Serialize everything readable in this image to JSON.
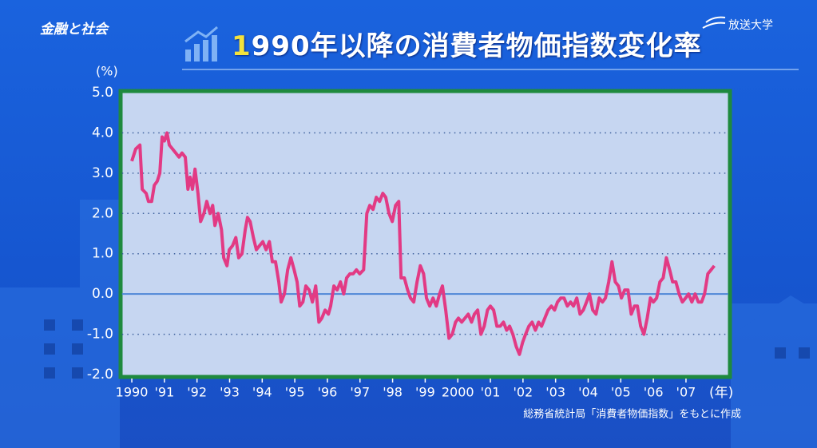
{
  "header": {
    "program": "金融と社会",
    "logo": "放送大学"
  },
  "chart_data": {
    "type": "line",
    "title": "1990年以降の消費者物価指数変化率",
    "y_label": "(%)",
    "x_label": "(年)",
    "source": "総務省統計局「消費者物価指数」をもとに作成",
    "color": "#e23a84",
    "x": [
      1990.0,
      1990.12,
      1990.25,
      1990.32,
      1990.44,
      1990.51,
      1990.61,
      1990.69,
      1990.78,
      1990.86,
      1990.93,
      1991.0,
      1991.08,
      1991.15,
      1991.25,
      1991.35,
      1991.45,
      1991.54,
      1991.64,
      1991.72,
      1991.79,
      1991.86,
      1991.94,
      1992.03,
      1992.11,
      1992.21,
      1992.3,
      1992.4,
      1992.48,
      1992.55,
      1992.65,
      1992.75,
      1992.82,
      1992.92,
      1992.99,
      1993.09,
      1993.19,
      1993.28,
      1993.38,
      1993.48,
      1993.55,
      1993.63,
      1993.73,
      1993.82,
      1993.92,
      1994.02,
      1994.12,
      1994.22,
      1994.31,
      1994.41,
      1994.51,
      1994.58,
      1994.68,
      1994.78,
      1994.88,
      1994.98,
      1995.07,
      1995.15,
      1995.25,
      1995.34,
      1995.44,
      1995.54,
      1995.64,
      1995.74,
      1995.83,
      1995.93,
      1996.03,
      1996.1,
      1996.2,
      1996.3,
      1996.4,
      1996.5,
      1996.59,
      1996.69,
      1996.79,
      1996.89,
      1996.99,
      1997.11,
      1997.21,
      1997.3,
      1997.4,
      1997.5,
      1997.6,
      1997.7,
      1997.79,
      1997.89,
      1997.99,
      1998.09,
      1998.19,
      1998.26,
      1998.36,
      1998.46,
      1998.55,
      1998.65,
      1998.75,
      1998.85,
      1998.95,
      1999.04,
      1999.14,
      1999.24,
      1999.34,
      1999.44,
      1999.53,
      1999.63,
      1999.73,
      1999.83,
      1999.93,
      2000.02,
      2000.12,
      2000.22,
      2000.32,
      2000.42,
      2000.51,
      2000.61,
      2000.71,
      2000.81,
      2000.91,
      2001.0,
      2001.1,
      2001.2,
      2001.3,
      2001.4,
      2001.5,
      2001.59,
      2001.69,
      2001.79,
      2001.89,
      2001.99,
      2002.08,
      2002.18,
      2002.28,
      2002.38,
      2002.48,
      2002.57,
      2002.67,
      2002.77,
      2002.87,
      2002.97,
      2003.06,
      2003.16,
      2003.26,
      2003.36,
      2003.46,
      2003.55,
      2003.65,
      2003.75,
      2003.85,
      2003.95,
      2004.04,
      2004.14,
      2004.24,
      2004.34,
      2004.44,
      2004.53,
      2004.63,
      2004.73,
      2004.83,
      2004.93,
      2005.02,
      2005.12,
      2005.22,
      2005.32,
      2005.42,
      2005.51,
      2005.61,
      2005.71,
      2005.81,
      2005.91,
      2006.0,
      2006.1,
      2006.2,
      2006.3,
      2006.4,
      2006.5,
      2006.59,
      2006.69,
      2006.79,
      2006.89,
      2006.99,
      2007.08,
      2007.18,
      2007.28,
      2007.38,
      2007.48,
      2007.57,
      2007.67,
      2007.77,
      2007.87
    ],
    "values": [
      3.3,
      3.6,
      3.7,
      2.6,
      2.5,
      2.3,
      2.3,
      2.7,
      2.8,
      3.0,
      3.9,
      3.8,
      4.0,
      3.7,
      3.6,
      3.5,
      3.4,
      3.5,
      3.4,
      2.6,
      2.9,
      2.6,
      3.1,
      2.5,
      1.8,
      2.0,
      2.3,
      2.0,
      2.2,
      1.7,
      2.0,
      1.6,
      0.9,
      0.7,
      1.1,
      1.2,
      1.4,
      0.9,
      1.0,
      1.6,
      1.9,
      1.8,
      1.4,
      1.1,
      1.2,
      1.3,
      1.1,
      1.3,
      0.8,
      0.8,
      0.3,
      -0.2,
      0.0,
      0.6,
      0.9,
      0.6,
      0.3,
      -0.3,
      -0.2,
      0.2,
      0.1,
      -0.2,
      0.2,
      -0.7,
      -0.6,
      -0.4,
      -0.5,
      -0.3,
      0.2,
      0.1,
      0.3,
      0.0,
      0.4,
      0.5,
      0.5,
      0.6,
      0.5,
      0.6,
      2.0,
      2.2,
      2.1,
      2.4,
      2.3,
      2.5,
      2.4,
      2.0,
      1.8,
      2.2,
      2.3,
      0.4,
      0.4,
      0.1,
      -0.1,
      -0.2,
      0.3,
      0.7,
      0.5,
      -0.1,
      -0.3,
      -0.1,
      -0.3,
      0.0,
      0.2,
      -0.4,
      -1.1,
      -1.0,
      -0.7,
      -0.6,
      -0.7,
      -0.6,
      -0.5,
      -0.7,
      -0.5,
      -0.4,
      -1.0,
      -0.8,
      -0.4,
      -0.3,
      -0.4,
      -0.8,
      -0.8,
      -0.7,
      -0.9,
      -0.8,
      -1.0,
      -1.3,
      -1.5,
      -1.2,
      -1.0,
      -0.8,
      -0.7,
      -0.9,
      -0.7,
      -0.8,
      -0.6,
      -0.4,
      -0.3,
      -0.4,
      -0.2,
      -0.1,
      -0.1,
      -0.3,
      -0.2,
      -0.3,
      -0.1,
      -0.5,
      -0.4,
      -0.2,
      0.0,
      -0.4,
      -0.5,
      -0.1,
      -0.2,
      -0.1,
      0.3,
      0.8,
      0.3,
      0.2,
      -0.1,
      0.1,
      0.1,
      -0.5,
      -0.3,
      -0.3,
      -0.8,
      -1.0,
      -0.6,
      -0.1,
      -0.2,
      -0.1,
      0.3,
      0.4,
      0.9,
      0.6,
      0.3,
      0.3,
      0.0,
      -0.2,
      -0.1,
      0.0,
      -0.2,
      0.0,
      -0.2,
      -0.2,
      0.0,
      0.5,
      0.6,
      0.7
    ],
    "xlim": [
      1989.7,
      2008.3
    ],
    "xticks": [
      1990,
      {
        "value": 1991,
        "label": "'91"
      },
      {
        "value": 1992,
        "label": "'92"
      },
      {
        "value": 1993,
        "label": "'93"
      },
      {
        "value": 1994,
        "label": "'94"
      },
      {
        "value": 1995,
        "label": "'95"
      },
      {
        "value": 1996,
        "label": "'96"
      },
      {
        "value": 1997,
        "label": "'97"
      },
      {
        "value": 1998,
        "label": "'98"
      },
      {
        "value": 1999,
        "label": "'99"
      },
      2000,
      {
        "value": 2001,
        "label": "'01"
      },
      {
        "value": 2002,
        "label": "'02"
      },
      {
        "value": 2003,
        "label": "'03"
      },
      {
        "value": 2004,
        "label": "'04"
      },
      {
        "value": 2005,
        "label": "'05"
      },
      {
        "value": 2006,
        "label": "'06"
      },
      {
        "value": 2007,
        "label": "'07"
      }
    ],
    "ylim": [
      -2,
      5
    ],
    "yticks": [
      {
        "value": -2,
        "label": "-2.0"
      },
      {
        "value": -1,
        "label": "-1.0"
      },
      {
        "value": 0,
        "label": "0.0"
      },
      {
        "value": 1,
        "label": "1.0"
      },
      {
        "value": 2,
        "label": "2.0"
      },
      {
        "value": 3,
        "label": "3.0"
      },
      {
        "value": 4,
        "label": "4.0"
      },
      {
        "value": 5,
        "label": "5.0"
      }
    ],
    "grid": true
  }
}
